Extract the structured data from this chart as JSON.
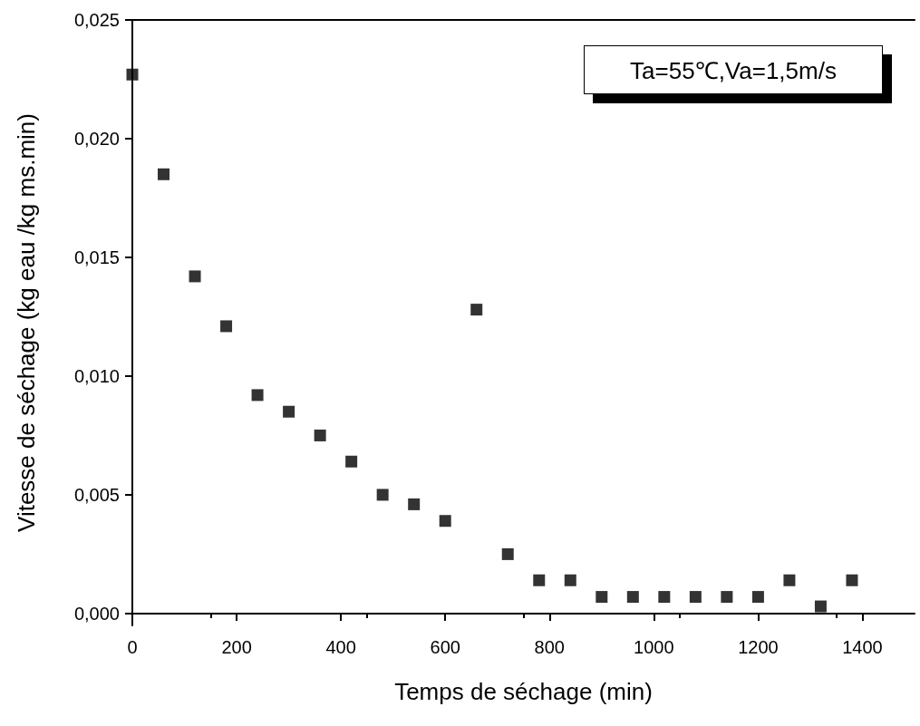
{
  "chart_data": {
    "type": "scatter",
    "xlabel": "Temps de séchage (min)",
    "ylabel": "Vitesse de séchage (kg eau /kg ms.min)",
    "annotations": [
      "Ta=55℃,Va=1,5m/s"
    ],
    "x": [
      0,
      60,
      120,
      180,
      240,
      300,
      360,
      420,
      480,
      540,
      600,
      660,
      720,
      780,
      840,
      900,
      960,
      1020,
      1080,
      1140,
      1200,
      1260,
      1320,
      1380
    ],
    "values": [
      0.0227,
      0.0185,
      0.0142,
      0.0121,
      0.0092,
      0.0085,
      0.0075,
      0.0064,
      0.005,
      0.0046,
      0.0039,
      0.0128,
      0.0025,
      0.0014,
      0.0014,
      0.0007,
      0.0007,
      0.0007,
      0.0007,
      0.0007,
      0.0007,
      0.0014,
      0.0003,
      0.0014
    ],
    "color": "#000000",
    "marker": "square",
    "xlim": [
      0,
      1500
    ],
    "xticks": [
      0,
      200,
      400,
      600,
      800,
      1000,
      1200,
      1400
    ],
    "ylim": [
      -0.0005,
      0.025
    ],
    "yticks": [
      {
        "value": 0,
        "label": "0,000"
      },
      {
        "value": 0.005,
        "label": "0,005"
      },
      {
        "value": 0.01,
        "label": "0,010"
      },
      {
        "value": 0.015,
        "label": "0,015"
      },
      {
        "value": 0.02,
        "label": "0,020"
      },
      {
        "value": 0.025,
        "label": "0,025"
      }
    ],
    "grid": false
  }
}
